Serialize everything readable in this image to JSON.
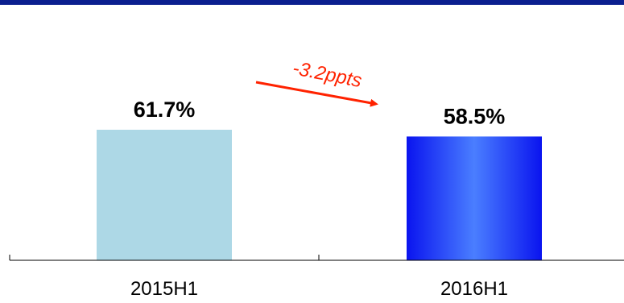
{
  "chart_data": {
    "type": "bar",
    "categories": [
      "2015H1",
      "2016H1"
    ],
    "values": [
      61.7,
      58.5
    ],
    "value_labels": [
      "61.7%",
      "58.5%"
    ],
    "title": "",
    "xlabel": "",
    "ylabel": "",
    "ylim": [
      0,
      100
    ],
    "grid": false,
    "legend": "none",
    "annotation": {
      "text": "-3.2ppts",
      "from": "2015H1",
      "to": "2016H1"
    },
    "colors": {
      "bar_2015H1": "#add8e6",
      "bar_2016H1_edge": "#0a14ef",
      "bar_2016H1_center": "#4a7eff",
      "annotation": "#ff2200",
      "header_band": "#0b1f8f",
      "axis": "#000000"
    }
  }
}
